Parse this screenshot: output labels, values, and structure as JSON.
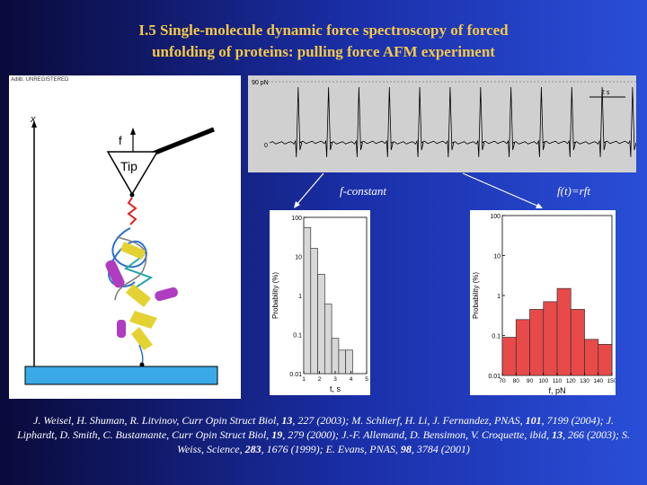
{
  "title": {
    "line1": "I.5 Single-molecule dynamic force spectroscopy of forced",
    "line2": "unfolding of proteins: pulling force AFM experiment"
  },
  "afm_diagram": {
    "watermark": "Adlib: UNREGISTERED",
    "axis_label": "x",
    "force_label": "f",
    "tip_label": "Tip"
  },
  "trace": {
    "scale_top": "90 pN",
    "scale_zero": "0",
    "time_scale": "2 s"
  },
  "modes": {
    "left": "f-constant",
    "right": "f(t)=rft"
  },
  "chart_data": [
    {
      "type": "bar",
      "title": "",
      "xlabel": "t, s",
      "ylabel": "Probability (%)",
      "y_scale": "log",
      "ylim": [
        0.01,
        100
      ],
      "yticks": [
        "100",
        "10",
        "1",
        "0.1",
        "0.01"
      ],
      "xticks": [
        "1",
        "2",
        "3",
        "4",
        "5"
      ],
      "categories": [
        "0.5-1",
        "1-1.5",
        "1.5-2",
        "2-2.5",
        "2.5-3",
        "3-3.5",
        "3.5-4",
        "4-4.5",
        "4.5-5"
      ],
      "values": [
        55,
        16,
        3.5,
        0.6,
        0.08,
        0.04,
        0.04,
        0.01,
        0.01
      ],
      "color": "#d8d8d8"
    },
    {
      "type": "bar",
      "title": "",
      "xlabel": "f, pN",
      "ylabel": "Probability (%)",
      "y_scale": "log",
      "ylim": [
        0.01,
        100
      ],
      "yticks": [
        "100",
        "10",
        "1",
        "0.1",
        "0.01"
      ],
      "xticks": [
        "70",
        "80",
        "90",
        "100",
        "110",
        "120",
        "130",
        "140",
        "150"
      ],
      "categories": [
        "70-80",
        "80-90",
        "90-100",
        "100-110",
        "110-120",
        "120-130",
        "130-140",
        "140-150"
      ],
      "values": [
        0.09,
        0.25,
        0.45,
        0.7,
        1.5,
        0.45,
        0.08,
        0.06
      ],
      "color": "#e84a4a"
    }
  ],
  "citation": {
    "p1": "J. Weisel, H. Shuman, R. Litvinov, Curr Opin Struct Biol, ",
    "v1": "13",
    "p2": ", 227 (2003); M. Schlierf, H. Li, J. Fernandez, PNAS, ",
    "v2": "101",
    "p3": ", 7199 (2004); J. Liphardt, D. Smith, C. Bustamante, Curr Opin Struct Biol, ",
    "v3": "19",
    "p4": ", 279 (2000); J.-F. Allemand, D. Bensimon, V. Croquette, ibid, ",
    "v4": "13",
    "p5": ", 266 (2003); S. Weiss, Science, ",
    "v5": "283",
    "p6": ", 1676 (1999); E. Evans, PNAS, ",
    "v6": "98",
    "p7": ", 3784 (2001)"
  }
}
